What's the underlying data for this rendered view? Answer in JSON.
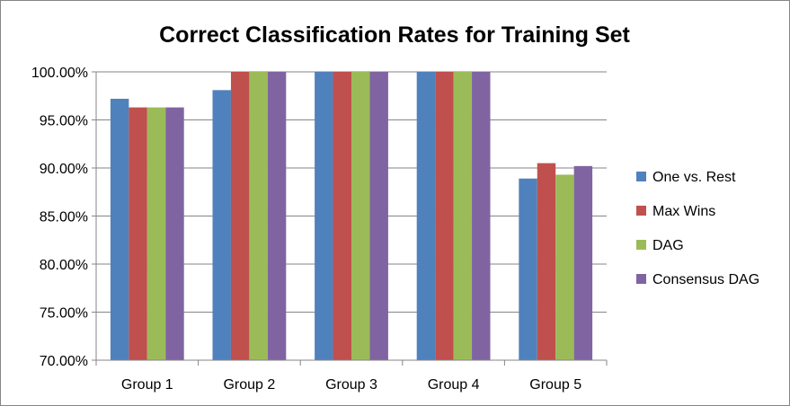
{
  "chart_data": {
    "type": "bar",
    "title": "Correct Classification Rates for Training Set",
    "xlabel": "",
    "ylabel": "",
    "categories": [
      "Group 1",
      "Group 2",
      "Group 3",
      "Group 4",
      "Group 5"
    ],
    "series": [
      {
        "name": "One vs. Rest",
        "color": "#4F81BD",
        "values": [
          97.2,
          98.1,
          100.0,
          100.0,
          88.9
        ]
      },
      {
        "name": "Max Wins",
        "color": "#C0504D",
        "values": [
          96.3,
          100.0,
          100.0,
          100.0,
          90.5
        ]
      },
      {
        "name": "DAG",
        "color": "#9BBB59",
        "values": [
          96.3,
          100.0,
          100.0,
          100.0,
          89.3
        ]
      },
      {
        "name": "Consensus DAG",
        "color": "#8064A2",
        "values": [
          96.3,
          100.0,
          100.0,
          100.0,
          90.2
        ]
      }
    ],
    "ylim": [
      70,
      100
    ],
    "yticks": [
      70,
      75,
      80,
      85,
      90,
      95,
      100
    ],
    "ytick_labels": [
      "70.00%",
      "75.00%",
      "80.00%",
      "85.00%",
      "90.00%",
      "95.00%",
      "100.00%"
    ],
    "grid": true,
    "legend_position": "right"
  }
}
